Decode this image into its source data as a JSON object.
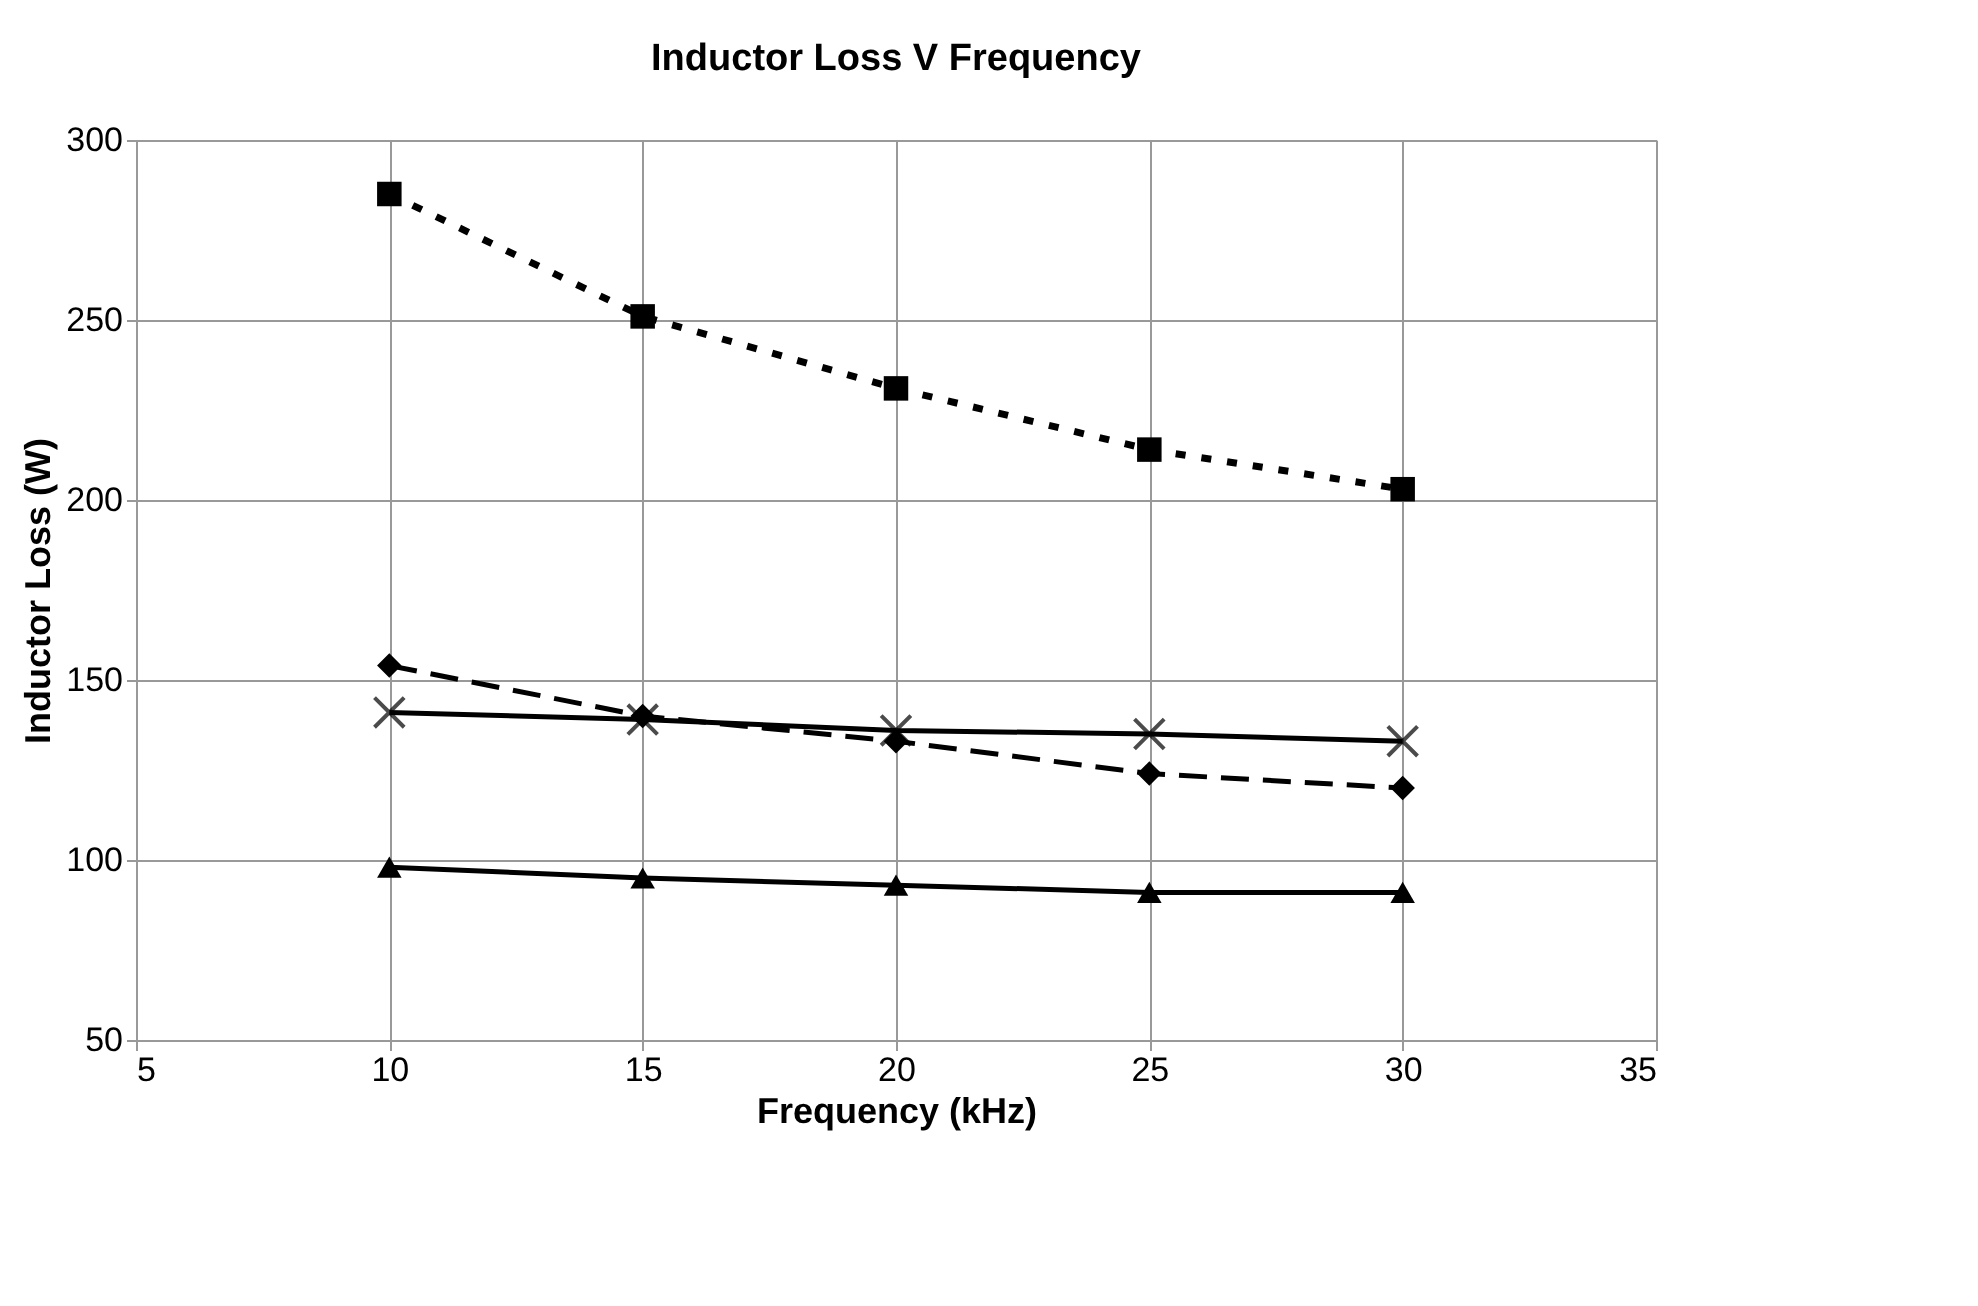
{
  "chart_data": {
    "type": "line",
    "title": "Inductor Loss V Frequency",
    "xlabel": "Frequency (kHz)",
    "ylabel": "Inductor Loss (W)",
    "x": [
      10,
      15,
      20,
      25,
      30
    ],
    "series": [
      {
        "color": "#000000",
        "marker": "square",
        "line_style": "dotted",
        "values": [
          285,
          251,
          231,
          214,
          203
        ]
      },
      {
        "color": "#000000",
        "marker": "diamond",
        "line_style": "dashed",
        "values": [
          154,
          140,
          133,
          124,
          120
        ]
      },
      {
        "color": "#000000",
        "marker": "cross",
        "line_style": "solid",
        "values": [
          141,
          139,
          136,
          135,
          133
        ]
      },
      {
        "color": "#000000",
        "marker": "triangle",
        "line_style": "solid",
        "values": [
          98,
          95,
          93,
          91,
          91
        ]
      }
    ],
    "xlim": [
      5,
      35
    ],
    "xticks": [
      5,
      10,
      15,
      20,
      25,
      30,
      35
    ],
    "ylim": [
      50,
      300
    ],
    "yticks": [
      50,
      100,
      150,
      200,
      250,
      300
    ],
    "grid": true
  }
}
